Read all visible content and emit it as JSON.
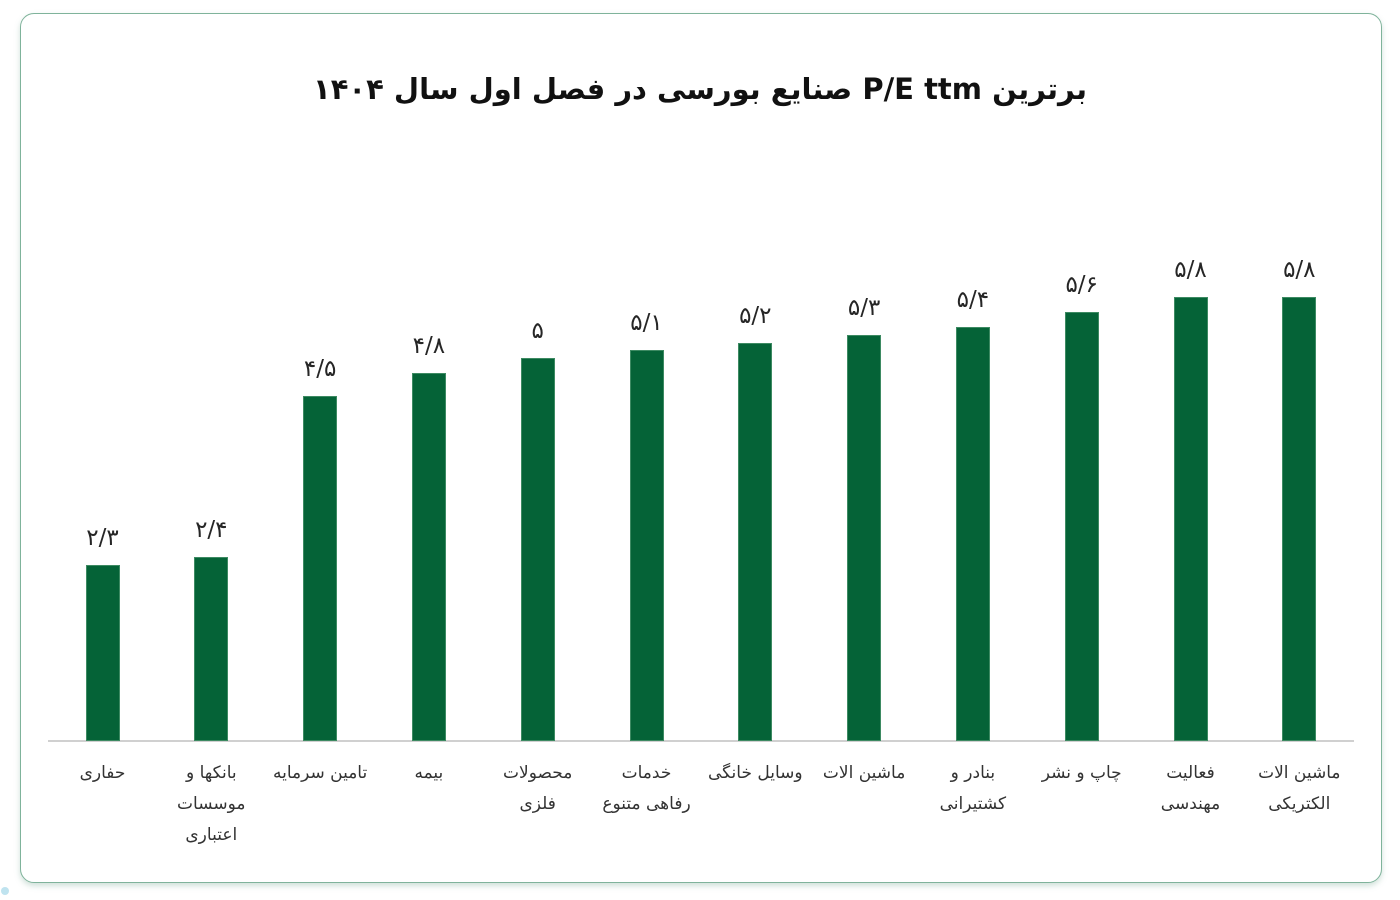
{
  "title": "برترین P/E ttm صنایع بورسی در فصل اول سال ۱۴۰۴",
  "colors": {
    "bar": "#056337",
    "border": "#7fb39b",
    "text": "#262626"
  },
  "chart_data": {
    "type": "bar",
    "title": "برترین P/E ttm صنایع بورسی در فصل اول سال ۱۴۰۴",
    "xlabel": "",
    "ylabel": "",
    "grid": false,
    "legend": null,
    "orientation": "vertical",
    "ylim": [
      0,
      6
    ],
    "categories": [
      "حفاری",
      "بانکها و موسسات اعتباری",
      "تامین سرمایه",
      "بیمه",
      "محصولات فلزی",
      "خدمات رفاهی متنوع",
      "وسایل خانگی",
      "ماشین الات",
      "بنادر و کشتیرانی",
      "چاپ و نشر",
      "فعالیت مهندسی",
      "ماشین الات الکتریکی"
    ],
    "values": [
      2.3,
      2.4,
      4.5,
      4.8,
      5.0,
      5.1,
      5.2,
      5.3,
      5.4,
      5.6,
      5.8,
      5.8
    ],
    "data_labels": [
      "۲/۳",
      "۲/۴",
      "۴/۵",
      "۴/۸",
      "۵",
      "۵/۱",
      "۵/۲",
      "۵/۳",
      "۵/۴",
      "۵/۶",
      "۵/۸",
      "۵/۸"
    ]
  },
  "bars": [
    {
      "label": "۲/۳",
      "value": 2.3,
      "cat": "حفاری"
    },
    {
      "label": "۲/۴",
      "value": 2.4,
      "cat": "بانکها و\nموسسات\nاعتباری"
    },
    {
      "label": "۴/۵",
      "value": 4.5,
      "cat": "تامین سرمایه"
    },
    {
      "label": "۴/۸",
      "value": 4.8,
      "cat": "بیمه"
    },
    {
      "label": "۵",
      "value": 5.0,
      "cat": "محصولات\nفلزی"
    },
    {
      "label": "۵/۱",
      "value": 5.1,
      "cat": "خدمات\nرفاهی متنوع"
    },
    {
      "label": "۵/۲",
      "value": 5.2,
      "cat": "وسایل خانگی"
    },
    {
      "label": "۵/۳",
      "value": 5.3,
      "cat": "ماشین الات"
    },
    {
      "label": "۵/۴",
      "value": 5.4,
      "cat": "بنادر و\nکشتیرانی"
    },
    {
      "label": "۵/۶",
      "value": 5.6,
      "cat": "چاپ و نشر"
    },
    {
      "label": "۵/۸",
      "value": 5.8,
      "cat": "فعالیت\nمهندسی"
    },
    {
      "label": "۵/۸",
      "value": 5.8,
      "cat": "ماشین الات\nالکتریکی"
    }
  ]
}
